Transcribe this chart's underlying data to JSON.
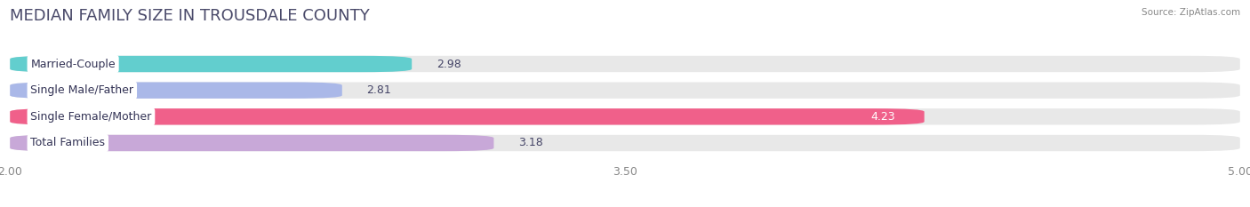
{
  "title": "MEDIAN FAMILY SIZE IN TROUSDALE COUNTY",
  "source": "Source: ZipAtlas.com",
  "categories": [
    "Married-Couple",
    "Single Male/Father",
    "Single Female/Mother",
    "Total Families"
  ],
  "values": [
    2.98,
    2.81,
    4.23,
    3.18
  ],
  "bar_colors": [
    "#62cece",
    "#aab8e8",
    "#f0608a",
    "#c8a8d8"
  ],
  "x_min": 2.0,
  "x_max": 5.0,
  "x_ticks": [
    2.0,
    3.5,
    5.0
  ],
  "x_tick_labels": [
    "2.00",
    "3.50",
    "5.00"
  ],
  "fig_background_color": "#ffffff",
  "bar_background_color": "#e8e8e8",
  "title_fontsize": 13,
  "label_fontsize": 9,
  "value_fontsize": 9,
  "bar_height": 0.62,
  "title_color": "#4a4a6a",
  "source_color": "#888888",
  "tick_color": "#888888"
}
